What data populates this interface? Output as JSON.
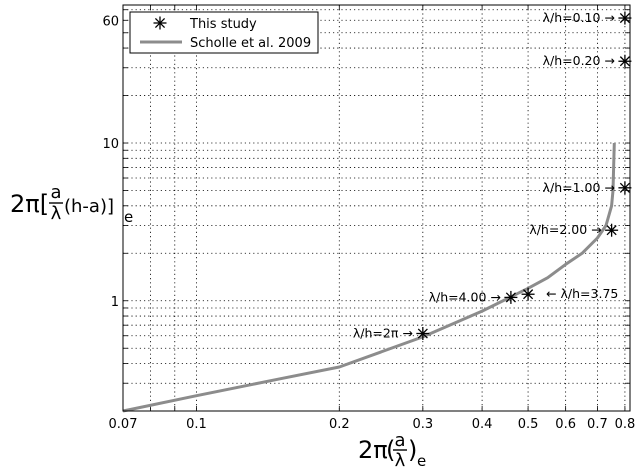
{
  "chart_data": {
    "type": "line",
    "x_scale": "log",
    "y_scale": "log",
    "xlim": [
      0.07,
      0.82
    ],
    "ylim": [
      0.2,
      75
    ],
    "grid": true,
    "legend_position": "top-left",
    "x_ticks": [
      {
        "value": 0.07,
        "label": "0.07"
      },
      {
        "value": 0.1,
        "label": "0.1"
      },
      {
        "value": 0.2,
        "label": "0.2"
      },
      {
        "value": 0.3,
        "label": "0.3"
      },
      {
        "value": 0.4,
        "label": "0.4"
      },
      {
        "value": 0.5,
        "label": "0.5"
      },
      {
        "value": 0.6,
        "label": "0.6"
      },
      {
        "value": 0.7,
        "label": "0.7"
      },
      {
        "value": 0.8,
        "label": "0.8"
      }
    ],
    "y_ticks": [
      {
        "value": 1,
        "label": "1"
      },
      {
        "value": 10,
        "label": "10"
      },
      {
        "value": 60,
        "label": "60"
      }
    ],
    "xlabel": {
      "main": "2π",
      "num": "a",
      "den": "λ",
      "sub": "e"
    },
    "ylabel": {
      "main": "2π[",
      "num": "a",
      "den": "λ",
      "rest": "(h-a)]",
      "sub": "e"
    },
    "series": [
      {
        "name": "This study",
        "type": "scatter",
        "marker": "asterisk",
        "color": "#000000",
        "points": [
          {
            "x": 0.3,
            "y": 0.62,
            "label": "λ/h=2π",
            "arrow": "→",
            "side": "left"
          },
          {
            "x": 0.46,
            "y": 1.05,
            "label": "λ/h=4.00",
            "arrow": "→",
            "side": "left"
          },
          {
            "x": 0.5,
            "y": 1.1,
            "label": "λ/h=3.75",
            "arrow": "←",
            "side": "right"
          },
          {
            "x": 0.75,
            "y": 2.8,
            "label": "λ/h=2.00",
            "arrow": "→",
            "side": "left"
          },
          {
            "x": 0.8,
            "y": 5.2,
            "label": "λ/h=1.00",
            "arrow": "→",
            "side": "left"
          },
          {
            "x": 0.8,
            "y": 33,
            "label": "λ/h=0.20",
            "arrow": "→",
            "side": "left"
          },
          {
            "x": 0.8,
            "y": 62,
            "label": "λ/h=0.10",
            "arrow": "→",
            "side": "left"
          }
        ]
      },
      {
        "name": "Scholle et al. 2009",
        "type": "line",
        "color": "#8c8c8c",
        "points": [
          {
            "x": 0.07,
            "y": 0.2
          },
          {
            "x": 0.1,
            "y": 0.25
          },
          {
            "x": 0.15,
            "y": 0.32
          },
          {
            "x": 0.2,
            "y": 0.38
          },
          {
            "x": 0.3,
            "y": 0.59
          },
          {
            "x": 0.4,
            "y": 0.86
          },
          {
            "x": 0.5,
            "y": 1.2
          },
          {
            "x": 0.55,
            "y": 1.4
          },
          {
            "x": 0.6,
            "y": 1.7
          },
          {
            "x": 0.65,
            "y": 2.0
          },
          {
            "x": 0.7,
            "y": 2.5
          },
          {
            "x": 0.73,
            "y": 3.0
          },
          {
            "x": 0.75,
            "y": 4.0
          },
          {
            "x": 0.755,
            "y": 5.0
          },
          {
            "x": 0.76,
            "y": 10.0
          }
        ]
      }
    ]
  }
}
